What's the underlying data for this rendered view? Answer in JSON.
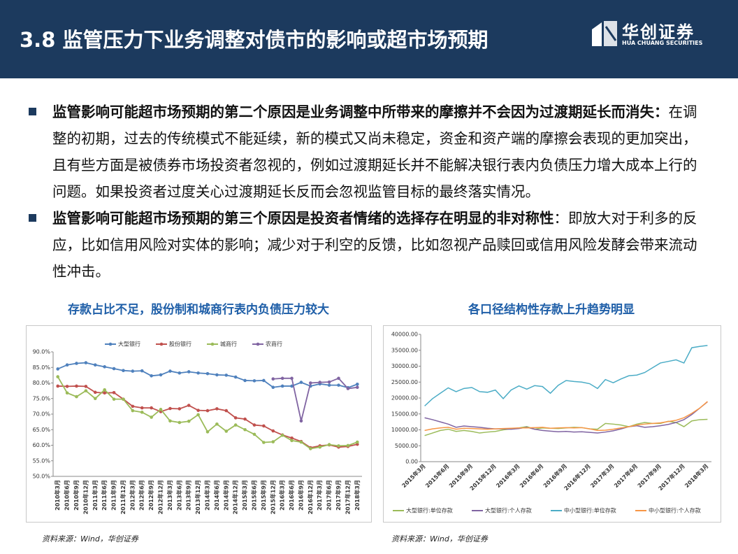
{
  "header": {
    "title": "3.8 监管压力下业务调整对债市的影响或超市场预期",
    "logo_cn": "华创证券",
    "logo_en": "HUA CHUANG SECURITIES"
  },
  "bullets": [
    {
      "bold": "监管影响可能超市场预期的第二个原因是业务调整中所带来的摩擦并不会因为过渡期延长而消失：",
      "text": "在调整的初期，过去的传统模式不能延续，新的模式又尚未稳定，资金和资产端的摩擦会表现的更加突出，且有些方面是被债券市场投资者忽视的，例如过渡期延长并不能解决银行表内负债压力增大成本上行的问题。如果投资者过度关心过渡期延长反而会忽视监管目标的最终落实情况。"
    },
    {
      "bold": "监管影响可能超市场预期的第三个原因是投资者情绪的选择存在明显的非对称性",
      "text": "：即放大对于利多的反应，比如信用风险对实体的影响；减少对于利空的反馈，比如忽视产品赎回或信用风险发酵会带来流动性冲击。"
    }
  ],
  "chart_data": [
    {
      "type": "line",
      "title": "存款占比不足，股份制和城商行表内负债压力较大",
      "source": "资料来源：Wind，华创证券",
      "legend": "top",
      "grid": false,
      "markers": true,
      "categories": [
        "2010年3月",
        "2010年6月",
        "2010年9月",
        "2010年12月",
        "2011年3月",
        "2011年6月",
        "2011年9月",
        "2011年12月",
        "2012年3月",
        "2012年6月",
        "2012年9月",
        "2012年12月",
        "2013年3月",
        "2013年6月",
        "2013年9月",
        "2013年12月",
        "2014年3月",
        "2014年6月",
        "2014年9月",
        "2014年12月",
        "2015年3月",
        "2015年6月",
        "2015年9月",
        "2015年12月",
        "2016年3月",
        "2016年6月",
        "2016年9月",
        "2016年12月",
        "2017年3月",
        "2017年6月",
        "2017年9月",
        "2017年12月",
        "2018年3月"
      ],
      "ylim": [
        50,
        90
      ],
      "yticks": [
        {
          "value": 50,
          "label": "50.0%"
        },
        {
          "value": 55,
          "label": "55.0%"
        },
        {
          "value": 60,
          "label": "60.0%"
        },
        {
          "value": 65,
          "label": "65.0%"
        },
        {
          "value": 70,
          "label": "70.0%"
        },
        {
          "value": 75,
          "label": "75.0%"
        },
        {
          "value": 80,
          "label": "80.0%"
        },
        {
          "value": 85,
          "label": "85.0%"
        },
        {
          "value": 90,
          "label": "90.0%"
        }
      ],
      "series": [
        {
          "name": "大型银行",
          "color": "#4f81bd",
          "values": [
            84.5,
            85.8,
            86.3,
            86.5,
            85.8,
            85.2,
            84.6,
            84.0,
            83.8,
            83.9,
            82.3,
            82.6,
            83.8,
            83.2,
            83.6,
            83.2,
            83.0,
            82.6,
            82.5,
            81.9,
            80.8,
            80.7,
            80.8,
            78.6,
            79.0,
            79.0,
            80.2,
            79.0,
            79.7,
            79.3,
            79.3,
            78.5,
            79.6
          ]
        },
        {
          "name": "股份银行",
          "color": "#c0504d",
          "values": [
            79.0,
            78.9,
            79.0,
            78.9,
            77.0,
            76.8,
            76.9,
            74.8,
            72.5,
            72.0,
            72.0,
            70.8,
            71.8,
            71.7,
            72.8,
            71.2,
            71.1,
            71.7,
            71.1,
            68.8,
            68.4,
            66.5,
            66.2,
            64.6,
            63.3,
            62.3,
            61.2,
            59.2,
            59.8,
            60.1,
            59.4,
            59.6,
            60.3
          ]
        },
        {
          "name": "城商行",
          "color": "#9bbb59",
          "values": [
            82.0,
            76.8,
            75.6,
            77.5,
            75.0,
            77.8,
            74.8,
            74.8,
            71.1,
            70.6,
            69.0,
            71.5,
            67.8,
            67.3,
            67.7,
            69.8,
            64.3,
            66.8,
            64.5,
            66.5,
            65.0,
            63.5,
            60.9,
            61.1,
            63.2,
            61.5,
            61.0,
            58.9,
            59.4,
            60.2,
            59.8,
            59.9,
            61.0
          ]
        },
        {
          "name": "农商行",
          "color": "#8064a2",
          "values": [
            null,
            null,
            null,
            null,
            null,
            null,
            null,
            null,
            null,
            null,
            null,
            null,
            null,
            null,
            null,
            null,
            null,
            null,
            null,
            null,
            null,
            null,
            null,
            81.3,
            81.5,
            81.5,
            67.8,
            80.0,
            80.2,
            80.3,
            81.5,
            78.2,
            78.6
          ]
        }
      ]
    },
    {
      "type": "line",
      "title": "各口径结构性存款上升趋势明显",
      "source": "资料来源：Wind，华创证券",
      "legend": "bottom",
      "grid": false,
      "markers": false,
      "categories": [
        "2015年3月",
        null,
        null,
        "2015年6月",
        null,
        null,
        "2015年9月",
        null,
        null,
        "2015年12月",
        null,
        null,
        "2016年3月",
        null,
        null,
        "2016年6月",
        null,
        null,
        "2016年9月",
        null,
        null,
        "2016年12月",
        null,
        null,
        "2017年3月",
        null,
        null,
        "2017年6月",
        null,
        null,
        "2017年9月",
        null,
        null,
        "2017年12月",
        null,
        null,
        "2018年3月"
      ],
      "ylim": [
        0,
        40000
      ],
      "yticks": [
        {
          "value": 0,
          "label": "0.00"
        },
        {
          "value": 5000,
          "label": "5000.00"
        },
        {
          "value": 10000,
          "label": "10000.00"
        },
        {
          "value": 15000,
          "label": "15000.00"
        },
        {
          "value": 20000,
          "label": "20000.00"
        },
        {
          "value": 25000,
          "label": "25000.00"
        },
        {
          "value": 30000,
          "label": "30000.00"
        },
        {
          "value": 35000,
          "label": "35000.00"
        },
        {
          "value": 40000,
          "label": "40000.00"
        }
      ],
      "series": [
        {
          "name": "大型银行:单位存款",
          "color": "#9bbb59",
          "values": [
            8200,
            9000,
            9800,
            10200,
            9500,
            9800,
            9500,
            9000,
            9300,
            9500,
            10000,
            10300,
            10600,
            11000,
            10200,
            10600,
            10500,
            10400,
            10600,
            10800,
            10700,
            10300,
            10200,
            12000,
            11800,
            11500,
            11000,
            11800,
            12300,
            12000,
            12000,
            12700,
            12300,
            11000,
            12800,
            13200,
            13300
          ]
        },
        {
          "name": "大型银行:个人存款",
          "color": "#8064a2",
          "values": [
            13800,
            13200,
            12500,
            11800,
            10800,
            11200,
            11000,
            10800,
            10500,
            10300,
            10300,
            10200,
            10400,
            10800,
            10200,
            9800,
            9600,
            9400,
            9500,
            9300,
            9400,
            9200,
            9000,
            9300,
            9700,
            10300,
            11000,
            11300,
            10800,
            11000,
            11300,
            11700,
            12300,
            13200,
            14800,
            16800,
            18800
          ]
        },
        {
          "name": "中小型银行:单位存款",
          "color": "#4bacc6",
          "values": [
            17500,
            19800,
            21500,
            23200,
            22000,
            23000,
            23300,
            22000,
            21800,
            22500,
            19800,
            22500,
            23800,
            22800,
            23900,
            23600,
            21500,
            24000,
            25500,
            25200,
            25000,
            24500,
            23000,
            25800,
            24800,
            26000,
            27000,
            27200,
            28000,
            29500,
            31000,
            31500,
            32000,
            31000,
            35800,
            36200,
            36500
          ]
        },
        {
          "name": "中小型银行:个人存款",
          "color": "#f79646",
          "values": [
            9800,
            10300,
            10600,
            10800,
            10200,
            10500,
            10400,
            10300,
            10200,
            10300,
            10400,
            10500,
            10600,
            10600,
            10700,
            10800,
            10500,
            10600,
            10700,
            10600,
            10700,
            10300,
            9800,
            9900,
            10200,
            10600,
            11000,
            11500,
            11800,
            12000,
            12200,
            12600,
            13000,
            13800,
            15200,
            16800,
            18900
          ]
        }
      ]
    }
  ]
}
